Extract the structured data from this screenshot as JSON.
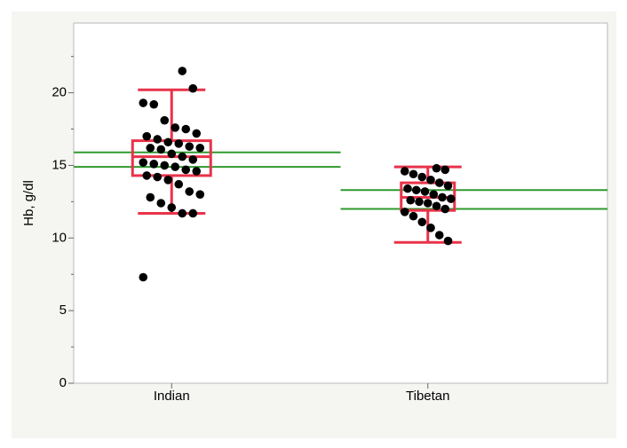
{
  "chart_data": {
    "type": "box",
    "y_label": "Hb, g/dl",
    "ylim": [
      0,
      24.8
    ],
    "yticks": [
      0,
      5,
      10,
      15,
      20
    ],
    "minor_yticks": [
      2.5,
      7.5,
      12.5,
      17.5,
      22.5
    ],
    "box_color": "#e8334a",
    "ci_color": "#2f9a2f",
    "point_color": "#000000",
    "groups": [
      {
        "name": "Indian",
        "whisker_low": 11.7,
        "q1": 14.3,
        "median": 15.6,
        "q3": 16.7,
        "whisker_high": 20.2,
        "ci": [
          14.9,
          15.9
        ],
        "points": [
          21.5,
          20.3,
          19.3,
          19.2,
          18.1,
          17.6,
          17.5,
          17.2,
          17.0,
          16.8,
          16.6,
          16.5,
          16.3,
          16.2,
          16.2,
          16.1,
          15.8,
          15.6,
          15.4,
          15.2,
          15.1,
          15.0,
          14.9,
          14.7,
          14.6,
          14.3,
          14.2,
          14.0,
          13.7,
          13.2,
          13.0,
          12.8,
          12.4,
          12.1,
          11.7,
          11.7,
          7.3
        ]
      },
      {
        "name": "Tibetan",
        "whisker_low": 9.7,
        "q1": 11.9,
        "median": 12.8,
        "q3": 13.8,
        "whisker_high": 14.9,
        "ci": [
          12.0,
          13.3
        ],
        "points": [
          14.8,
          14.7,
          14.6,
          14.4,
          14.2,
          14.0,
          13.8,
          13.6,
          13.4,
          13.3,
          13.2,
          13.0,
          12.8,
          12.7,
          12.6,
          12.5,
          12.4,
          12.2,
          12.0,
          11.8,
          11.5,
          11.1,
          10.7,
          10.2,
          9.8
        ]
      }
    ]
  }
}
